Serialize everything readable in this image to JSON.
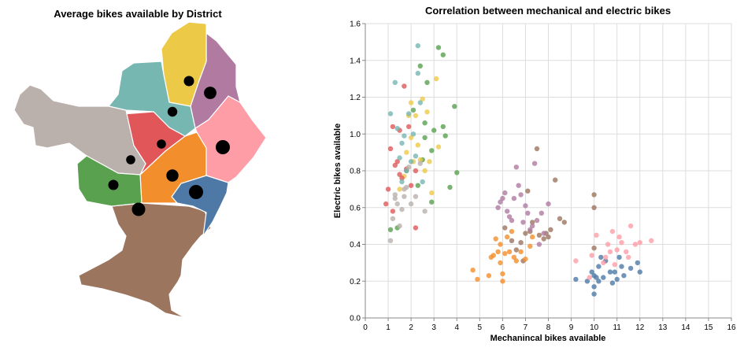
{
  "chart_data": [
    {
      "type": "choropleth-map",
      "title": "Average bikes available by District",
      "districts": [
        {
          "id": "d1",
          "color": "#edc948",
          "avg_bikes": 6
        },
        {
          "id": "d2",
          "color": "#b07aa1",
          "avg_bikes": 12
        },
        {
          "id": "d3",
          "color": "#76b7b2",
          "avg_bikes": 5
        },
        {
          "id": "d4",
          "color": "#bab0ac",
          "avg_bikes": 4
        },
        {
          "id": "d5",
          "color": "#e15759",
          "avg_bikes": 4
        },
        {
          "id": "d6",
          "color": "#ff9da7",
          "avg_bikes": 18
        },
        {
          "id": "d7",
          "color": "#59a14f",
          "avg_bikes": 6
        },
        {
          "id": "d8",
          "color": "#f28e2b",
          "avg_bikes": 11
        },
        {
          "id": "d9",
          "color": "#4e79a7",
          "avg_bikes": 18
        },
        {
          "id": "d10",
          "color": "#9c755f",
          "avg_bikes": 15
        }
      ]
    },
    {
      "type": "scatter",
      "title": "Correlation between mechanical and electric bikes",
      "xlabel": "Mechanincal bikes available",
      "ylabel": "Electric bikes available",
      "xlim": [
        0,
        16
      ],
      "ylim": [
        0,
        1.6
      ],
      "xticks": [
        0,
        1,
        2,
        3,
        4,
        5,
        6,
        7,
        8,
        9,
        10,
        11,
        12,
        13,
        14,
        15,
        16
      ],
      "yticks": [
        0,
        0.2,
        0.4,
        0.6,
        0.8,
        1.0,
        1.2,
        1.4,
        1.6
      ],
      "ytick_labels": [
        "0.0",
        "0.2",
        "0.4",
        "0.6",
        "0.8",
        "1.0",
        "1.2",
        "1.4",
        "1.6"
      ],
      "grid": true,
      "series": [
        {
          "color": "#4e79a7",
          "points": [
            [
              9.2,
              0.21
            ],
            [
              9.7,
              0.2
            ],
            [
              9.9,
              0.25
            ],
            [
              10,
              0.23
            ],
            [
              10,
              0.17
            ],
            [
              10,
              0.13
            ],
            [
              10.1,
              0.22
            ],
            [
              10.2,
              0.2
            ],
            [
              10.2,
              0.28
            ],
            [
              10.3,
              0.33
            ],
            [
              10.5,
              0.31
            ],
            [
              10.7,
              0.25
            ],
            [
              10.9,
              0.25
            ],
            [
              11,
              0.21
            ],
            [
              11.1,
              0.33
            ],
            [
              11.2,
              0.28
            ],
            [
              11.3,
              0.23
            ],
            [
              11.6,
              0.27
            ],
            [
              11.9,
              0.3
            ],
            [
              12,
              0.25
            ],
            [
              10.4,
              0.22
            ],
            [
              10.8,
              0.19
            ]
          ]
        },
        {
          "color": "#ff9da7",
          "points": [
            [
              9.2,
              0.31
            ],
            [
              9.8,
              0.22
            ],
            [
              9.9,
              0.34
            ],
            [
              10.1,
              0.45
            ],
            [
              10.4,
              0.3
            ],
            [
              10.5,
              0.33
            ],
            [
              10.6,
              0.4
            ],
            [
              10.7,
              0.36
            ],
            [
              10.8,
              0.47
            ],
            [
              11,
              0.37
            ],
            [
              11.2,
              0.41
            ],
            [
              11.4,
              0.36
            ],
            [
              11.5,
              0.33
            ],
            [
              11.6,
              0.5
            ],
            [
              11.8,
              0.4
            ],
            [
              12,
              0.41
            ],
            [
              12.5,
              0.42
            ],
            [
              10.9,
              0.29
            ],
            [
              11.1,
              0.44
            ]
          ]
        },
        {
          "color": "#9c755f",
          "points": [
            [
              6.1,
              0.49
            ],
            [
              6.4,
              0.42
            ],
            [
              6.6,
              0.37
            ],
            [
              6.8,
              0.41
            ],
            [
              7,
              0.46
            ],
            [
              7.2,
              0.47
            ],
            [
              7.3,
              0.52
            ],
            [
              7.5,
              0.92
            ],
            [
              7.6,
              0.45
            ],
            [
              7.8,
              0.43
            ],
            [
              8,
              0.44
            ],
            [
              8.1,
              0.48
            ],
            [
              8.3,
              0.75
            ],
            [
              8.5,
              0.54
            ],
            [
              8.7,
              0.52
            ],
            [
              10,
              0.67
            ],
            [
              10,
              0.6
            ],
            [
              10,
              0.38
            ],
            [
              7.1,
              0.69
            ],
            [
              7.9,
              0.46
            ],
            [
              6.9,
              0.31
            ]
          ]
        },
        {
          "color": "#b07aa1",
          "points": [
            [
              5.8,
              0.6
            ],
            [
              5.9,
              0.63
            ],
            [
              6,
              0.65
            ],
            [
              6.1,
              0.68
            ],
            [
              6.2,
              0.58
            ],
            [
              6.3,
              0.55
            ],
            [
              6.4,
              0.53
            ],
            [
              6.6,
              0.82
            ],
            [
              6.7,
              0.72
            ],
            [
              6.8,
              0.67
            ],
            [
              6.9,
              0.52
            ],
            [
              7,
              0.61
            ],
            [
              7.1,
              0.57
            ],
            [
              7.2,
              0.48
            ],
            [
              7.3,
              0.5
            ],
            [
              7.4,
              0.84
            ],
            [
              7.5,
              0.53
            ],
            [
              7.7,
              0.57
            ],
            [
              7.8,
              0.46
            ],
            [
              8,
              0.62
            ],
            [
              7.6,
              0.4
            ],
            [
              6.5,
              0.65
            ]
          ]
        },
        {
          "color": "#f28e2b",
          "points": [
            [
              4.7,
              0.26
            ],
            [
              4.9,
              0.21
            ],
            [
              5.4,
              0.23
            ],
            [
              5.5,
              0.33
            ],
            [
              5.6,
              0.34
            ],
            [
              5.8,
              0.36
            ],
            [
              5.9,
              0.4
            ],
            [
              5.9,
              0.3
            ],
            [
              6,
              0.24
            ],
            [
              6,
              0.2
            ],
            [
              6.1,
              0.35
            ],
            [
              6.2,
              0.44
            ],
            [
              6.3,
              0.36
            ],
            [
              6.5,
              0.33
            ],
            [
              6.6,
              0.31
            ],
            [
              6.8,
              0.36
            ],
            [
              7,
              0.32
            ],
            [
              7.2,
              0.39
            ],
            [
              7.3,
              0.44
            ],
            [
              5.7,
              0.43
            ],
            [
              6.4,
              0.47
            ]
          ]
        },
        {
          "color": "#59a14f",
          "points": [
            [
              1.1,
              0.48
            ],
            [
              1.4,
              0.49
            ],
            [
              1.8,
              0.8
            ],
            [
              2.1,
              1.13
            ],
            [
              2.3,
              0.72
            ],
            [
              2.4,
              1.37
            ],
            [
              2.6,
              1.06
            ],
            [
              2.7,
              1.28
            ],
            [
              2.9,
              0.91
            ],
            [
              3,
              1.02
            ],
            [
              3.2,
              1.47
            ],
            [
              3.4,
              1.43
            ],
            [
              3.4,
              1.04
            ],
            [
              3.5,
              0.99
            ],
            [
              3.7,
              0.71
            ],
            [
              3.9,
              1.15
            ],
            [
              4,
              0.79
            ],
            [
              2.6,
              0.98
            ],
            [
              2.9,
              0.63
            ],
            [
              2.5,
              0.86
            ]
          ]
        },
        {
          "color": "#edc948",
          "points": [
            [
              1.5,
              0.7
            ],
            [
              1.8,
              0.9
            ],
            [
              1.9,
              1.1
            ],
            [
              2,
              0.98
            ],
            [
              2.1,
              0.85
            ],
            [
              2.2,
              1.1
            ],
            [
              2.3,
              0.94
            ],
            [
              2.4,
              0.86
            ],
            [
              2.5,
              1.19
            ],
            [
              2.6,
              0.8
            ],
            [
              2.7,
              1.12
            ],
            [
              2.8,
              0.85
            ],
            [
              2.9,
              0.68
            ],
            [
              3.1,
              1.3
            ],
            [
              3.2,
              0.93
            ],
            [
              2,
              1.17
            ],
            [
              1.7,
              0.77
            ]
          ]
        },
        {
          "color": "#e15759",
          "points": [
            [
              0.9,
              0.62
            ],
            [
              1,
              0.7
            ],
            [
              1.1,
              0.92
            ],
            [
              1.2,
              1.04
            ],
            [
              1.3,
              0.83
            ],
            [
              1.4,
              0.85
            ],
            [
              1.5,
              1.02
            ],
            [
              1.6,
              0.76
            ],
            [
              1.7,
              1.26
            ],
            [
              1.8,
              0.81
            ],
            [
              1.9,
              1.04
            ],
            [
              2,
              0.72
            ],
            [
              2.2,
              0.8
            ],
            [
              2.2,
              0.49
            ],
            [
              1.2,
              0.58
            ],
            [
              1.5,
              0.78
            ]
          ]
        },
        {
          "color": "#76b7b2",
          "points": [
            [
              1.1,
              1.11
            ],
            [
              1.3,
              1.28
            ],
            [
              1.4,
              1.03
            ],
            [
              1.5,
              0.87
            ],
            [
              1.6,
              0.74
            ],
            [
              1.7,
              0.99
            ],
            [
              1.8,
              0.8
            ],
            [
              1.9,
              1.11
            ],
            [
              2,
              0.85
            ],
            [
              2.1,
              1.0
            ],
            [
              2.2,
              0.88
            ],
            [
              2.3,
              1.48
            ],
            [
              2.4,
              1.17
            ],
            [
              2.5,
              0.74
            ],
            [
              2.3,
              1.33
            ],
            [
              1.6,
              0.95
            ]
          ]
        },
        {
          "color": "#bab0ac",
          "points": [
            [
              1.1,
              0.42
            ],
            [
              1.2,
              0.54
            ],
            [
              1.3,
              0.65
            ],
            [
              1.4,
              0.62
            ],
            [
              1.5,
              0.5
            ],
            [
              1.6,
              0.59
            ],
            [
              1.7,
              0.66
            ],
            [
              1.8,
              0.71
            ],
            [
              1.9,
              0.82
            ],
            [
              2,
              0.62
            ],
            [
              2.2,
              0.66
            ],
            [
              2.4,
              0.84
            ],
            [
              2.6,
              0.58
            ],
            [
              1.3,
              0.67
            ],
            [
              1.7,
              0.7
            ]
          ]
        }
      ]
    }
  ]
}
